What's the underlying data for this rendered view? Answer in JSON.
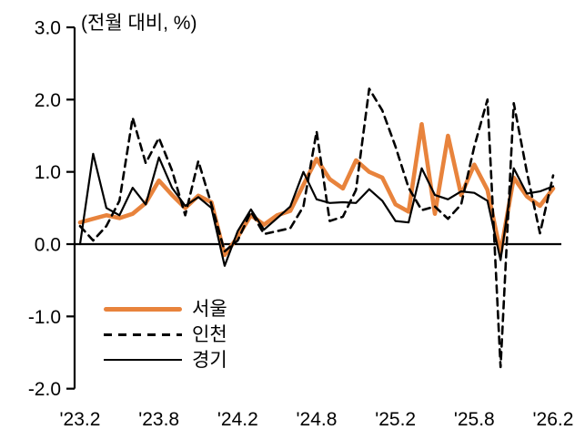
{
  "chart_data": {
    "type": "line",
    "title": "",
    "unit_label": "(전월 대비, %)",
    "xlabel": "",
    "ylabel": "",
    "ylim": [
      -2.0,
      3.0
    ],
    "grid": false,
    "legend_position": "inside-bottom-left",
    "y_tick_labels": [
      "3.0",
      "2.0",
      "1.0",
      "0.0",
      "-1.0",
      "-2.0"
    ],
    "y_tick_values": [
      3.0,
      2.0,
      1.0,
      0.0,
      -1.0,
      -2.0
    ],
    "x_tick_labels": [
      "'23.2",
      "'23.8",
      "'24.2",
      "'24.8",
      "'25.2",
      "'25.8",
      "'26.2"
    ],
    "x_tick_indices": [
      0,
      6,
      12,
      18,
      24,
      30,
      36
    ],
    "categories": [
      "23.2",
      "23.3",
      "23.4",
      "23.5",
      "23.6",
      "23.7",
      "23.8",
      "23.9",
      "23.10",
      "23.11",
      "23.12",
      "24.1",
      "24.2",
      "24.3",
      "24.4",
      "24.5",
      "24.6",
      "24.7",
      "24.8",
      "24.9",
      "24.10",
      "24.11",
      "24.12",
      "25.1",
      "25.2",
      "25.3",
      "25.4",
      "25.5",
      "25.6",
      "25.7",
      "25.8",
      "25.9",
      "25.10",
      "25.11",
      "25.12",
      "26.1",
      "26.2"
    ],
    "series": [
      {
        "name": "서울",
        "color": "#E8833C",
        "line_style": "solid",
        "line_width": 4.6,
        "values": [
          0.3,
          0.35,
          0.4,
          0.36,
          0.42,
          0.57,
          0.88,
          0.68,
          0.5,
          0.67,
          0.58,
          -0.15,
          0.1,
          0.4,
          0.27,
          0.4,
          0.46,
          0.82,
          1.18,
          0.9,
          0.77,
          1.16,
          1.0,
          0.92,
          0.55,
          0.45,
          1.66,
          0.42,
          1.5,
          0.68,
          1.1,
          0.75,
          -0.12,
          0.92,
          0.66,
          0.53,
          0.77
        ]
      },
      {
        "name": "인천",
        "color": "#000000",
        "line_style": "dashed",
        "line_width": 2.6,
        "values": [
          0.25,
          0.05,
          0.25,
          0.6,
          1.75,
          1.12,
          1.47,
          1.02,
          0.4,
          1.15,
          0.55,
          -0.1,
          0.05,
          0.45,
          0.14,
          0.18,
          0.22,
          0.52,
          1.56,
          0.32,
          0.38,
          0.75,
          2.15,
          1.85,
          1.35,
          0.78,
          0.47,
          0.52,
          0.35,
          0.55,
          1.35,
          2.0,
          -1.7,
          1.95,
          1.0,
          0.15,
          0.95
        ]
      },
      {
        "name": "경기",
        "color": "#000000",
        "line_style": "solid",
        "line_width": 2.2,
        "values": [
          0.0,
          1.25,
          0.5,
          0.4,
          0.78,
          0.55,
          1.2,
          0.78,
          0.53,
          0.65,
          0.5,
          -0.3,
          0.18,
          0.48,
          0.2,
          0.36,
          0.52,
          1.0,
          0.62,
          0.57,
          0.58,
          0.57,
          0.76,
          0.6,
          0.32,
          0.3,
          1.05,
          0.68,
          0.62,
          0.73,
          0.71,
          0.6,
          -0.22,
          1.05,
          0.7,
          0.73,
          0.8
        ]
      }
    ],
    "axis_color": "#000000"
  }
}
